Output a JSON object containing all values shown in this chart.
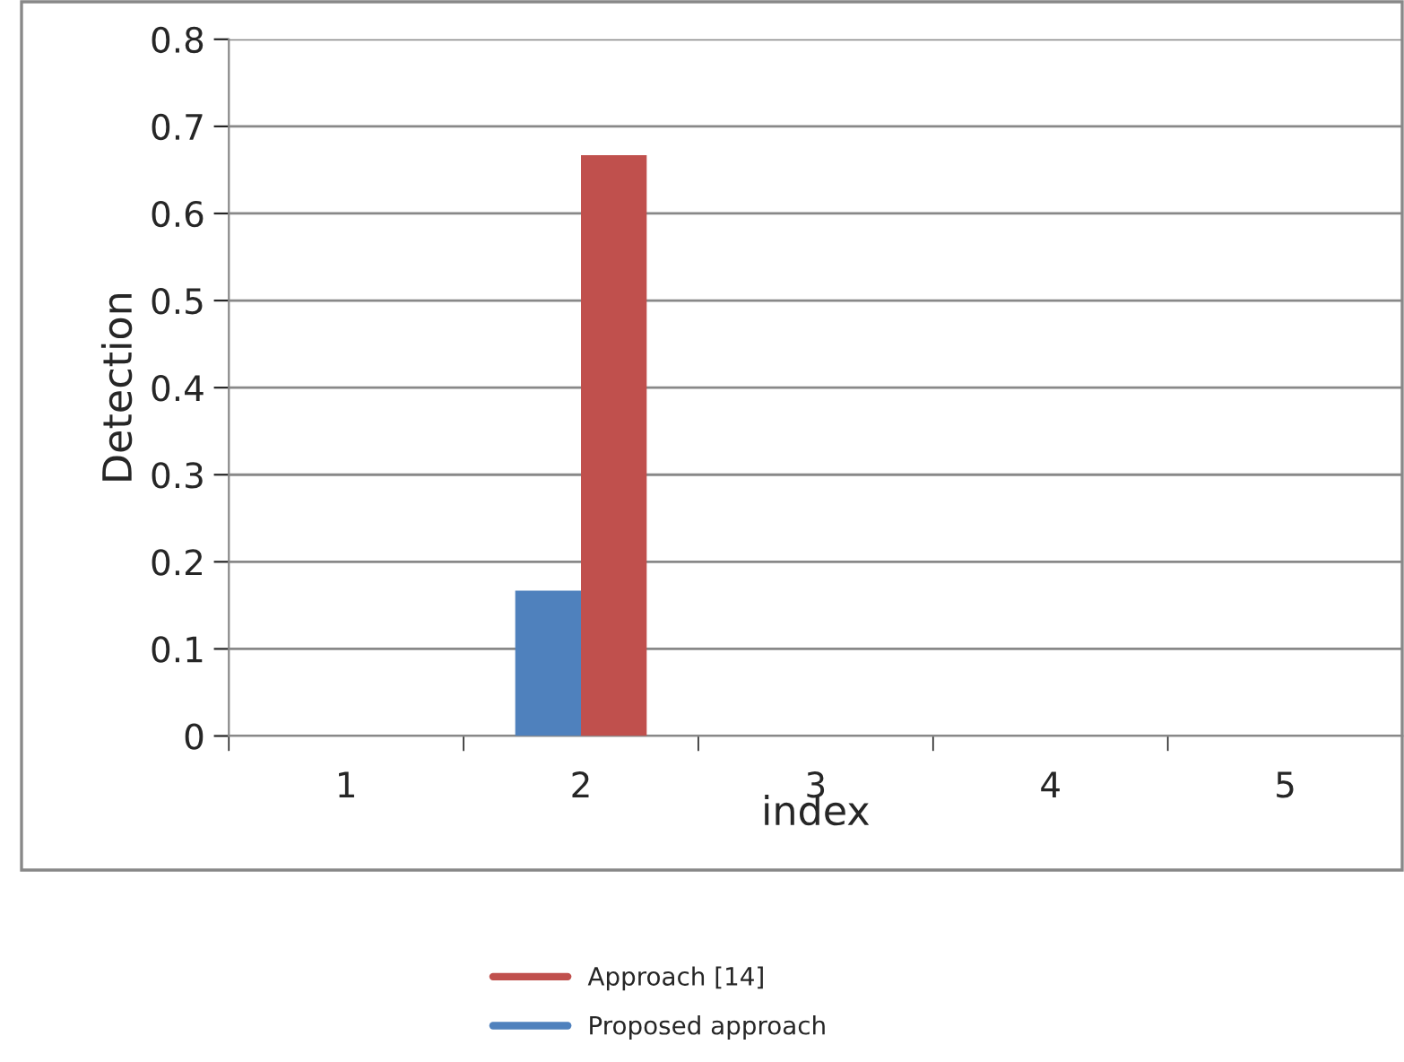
{
  "chart_data": {
    "type": "bar",
    "xlabel": "index",
    "ylabel": "Detection",
    "categories": [
      "1",
      "2",
      "3",
      "4",
      "5"
    ],
    "series": [
      {
        "name": "Proposed approach",
        "color": "#4f81bd",
        "values": [
          0,
          0.167,
          0,
          0,
          0
        ]
      },
      {
        "name": "Approach [14]",
        "color": "#c0504d",
        "values": [
          0,
          0.667,
          0,
          0,
          0
        ]
      }
    ],
    "ylim": [
      0,
      0.8
    ],
    "yticks": [
      0,
      0.1,
      0.2,
      0.3,
      0.4,
      0.5,
      0.6,
      0.7,
      0.8
    ],
    "grid": "y",
    "legend": "bottom"
  }
}
